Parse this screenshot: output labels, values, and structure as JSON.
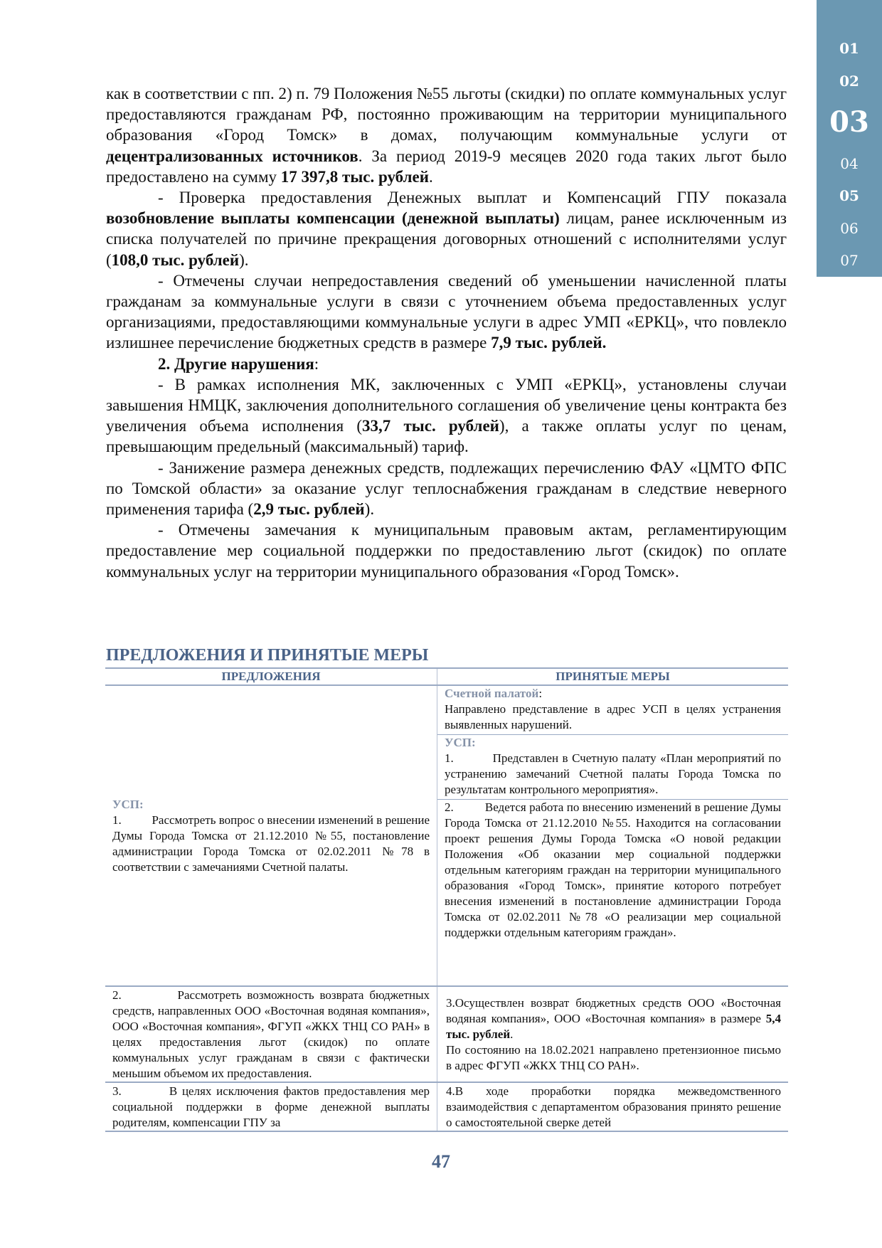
{
  "nav": {
    "items": [
      "01",
      "02",
      "03",
      "04",
      "05",
      "06",
      "07"
    ],
    "current": "03"
  },
  "body": {
    "paragraphs": [
      [
        {
          "t": "как в соответствии с пп. 2) п. 79 Положения №55 льготы (скидки) по оплате коммунальных услуг предоставляются гражданам РФ, постоянно проживающим на территории муниципального образования «Город Томск» в домах, получающим коммунальные услуги от "
        },
        {
          "t": "децентрализованных источников",
          "b": true
        },
        {
          "t": ". За период 2019-9 месяцев 2020 года таких льгот было предоставлено на сумму "
        },
        {
          "t": "17 397,8 тыс. рублей",
          "b": true
        },
        {
          "t": "."
        }
      ],
      [
        {
          "t": "- Проверка предоставления Денежных выплат и Компенсаций ГПУ показала "
        },
        {
          "t": "возобновление выплаты компенсации (денежной выплаты)",
          "b": true
        },
        {
          "t": " лицам, ранее исключенным из списка получателей по причине прекращения договорных отношений с исполнителями услуг ("
        },
        {
          "t": "108,0 тыс. рублей",
          "b": true
        },
        {
          "t": ")."
        }
      ],
      [
        {
          "t": "- Отмечены случаи непредоставления сведений об уменьшении начисленной платы гражданам за коммунальные услуги в связи с уточнением объема предоставленных услуг организациями, предоставляющими коммунальные услуги в адрес УМП «ЕРКЦ», что повлекло излишнее перечисление бюджетных средств в размере "
        },
        {
          "t": "7,9 тыс. рублей.",
          "b": true
        }
      ],
      [
        {
          "t": "2. Другие нарушения",
          "b": true
        },
        {
          "t": ":"
        }
      ],
      [
        {
          "t": "- В рамках исполнения МК, заключенных с УМП «ЕРКЦ», установлены случаи завышения НМЦК, заключения дополнительного соглашения об увеличение цены контракта без увеличения объема исполнения ("
        },
        {
          "t": "33,7 тыс. рублей",
          "b": true
        },
        {
          "t": "), а также оплаты услуг по ценам, превышающим предельный (максимальный) тариф."
        }
      ],
      [
        {
          "t": "- Занижение размера денежных средств, подлежащих перечислению ФАУ «ЦМТО ФПС по Томской области» за оказание услуг теплоснабжения гражданам в следствие неверного применения тарифа ("
        },
        {
          "t": "2,9 тыс. рублей",
          "b": true
        },
        {
          "t": ")."
        }
      ],
      [
        {
          "t": "- Отмечены замечания к муниципальным правовым актам, регламентирующим предоставление мер социальной поддержки по предоставлению льгот (скидок) по оплате коммунальных услуг на территории муниципального образования «Город Томск»."
        }
      ]
    ]
  },
  "section": {
    "title": "ПРЕДЛОЖЕНИЯ И ПРИНЯТЫЕ МЕРЫ",
    "col_left": "ПРЕДЛОЖЕНИЯ",
    "col_right": "ПРИНЯТЫЕ МЕРЫ",
    "row1": {
      "left_label": "УСП:",
      "left_text": "1.          Рассмотреть вопрос о внесении изменений в решение Думы Города Томска от 21.12.2010 №55, постановление администрации Города Томска от 02.02.2011 №78 в соответствии с замечаниями Счетной палаты.",
      "right_label1": "Счетной палатой",
      "right_text1": "Направлено представление в адрес УСП в целях устранения выявленных нарушений.",
      "right_label2": "УСП:",
      "right_text2": "1.          Представлен в Счетную палату «План мероприятий по устранению замечаний Счетной палаты Города Томска по результатам контрольного мероприятия».",
      "right_text3": "2.          Ведется работа по внесению изменений в решение Думы Города Томска от 21.12.2010 №55. Находится на согласовании проект решения Думы Города Томска «О новой редакции Положения «Об оказании мер социальной поддержки отдельным категориям граждан на территории муниципального образования «Город Томск», принятие которого потребует внесения изменений в постановление администрации Города Томска от 02.02.2011 №78 «О реализации мер социальной поддержки отдельным категориям граждан»."
    },
    "row2": {
      "left_text": "2.          Рассмотреть возможность возврата бюджетных средств, направленных ООО «Восточная водяная компания», ООО «Восточная компания», ФГУП «ЖКХ ТНЦ СО РАН» в целях предоставления льгот (скидок) по оплате коммунальных услуг гражданам в связи с фактически меньшим объемом их предоставления.",
      "right_text_a": "3.Осуществлен возврат бюджетных средств ООО «Восточная водяная компания», ООО «Восточная компания» в размере ",
      "right_bold": "5,4 тыс. рублей",
      "right_text_b": "По состоянию на 18.02.2021 направлено претензионное письмо в адрес ФГУП «ЖКХ ТНЦ СО РАН»."
    },
    "row3": {
      "left_text": "3.          В целях исключения фактов предоставления мер социальной поддержки в форме денежной выплаты родителям, компенсации ГПУ за",
      "right_text": "4.В ходе проработки порядка межведомственного взаимодействия с департаментом образования принято решение о самостоятельной сверке детей"
    }
  },
  "page_number": "47"
}
